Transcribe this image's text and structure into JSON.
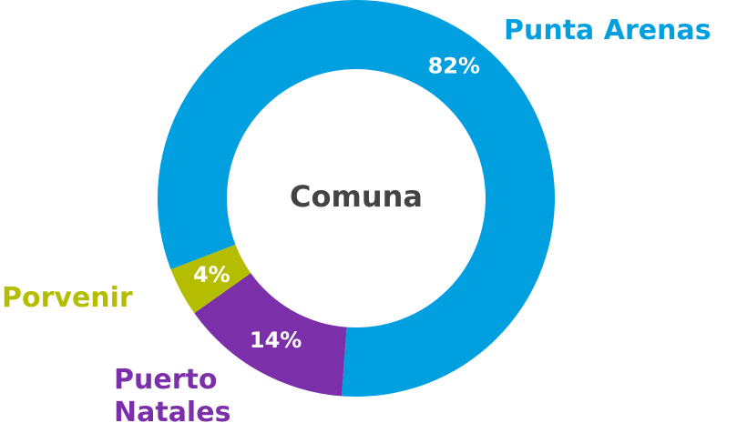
{
  "chart_data": {
    "type": "pie",
    "title": "Comuna",
    "categories": [
      "Punta Arenas",
      "Puerto Natales",
      "Porvenir"
    ],
    "values": [
      82,
      14,
      4
    ],
    "value_labels": [
      "82%",
      "14%",
      "4%"
    ],
    "colors": [
      "#009fdf",
      "#7b2fa8",
      "#b5bd00"
    ]
  }
}
